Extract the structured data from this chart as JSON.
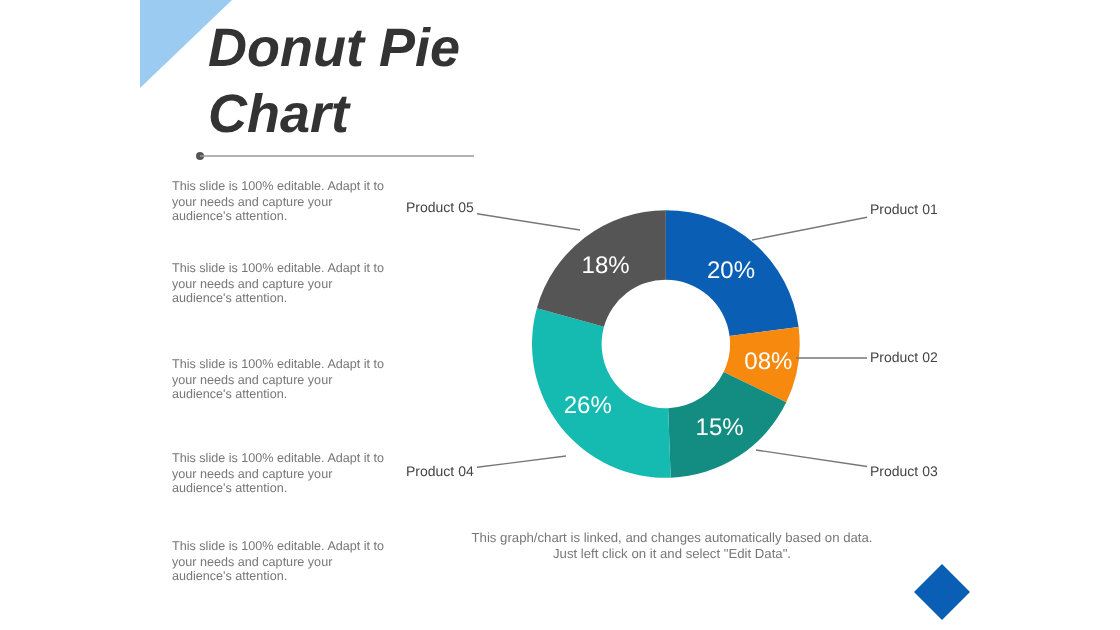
{
  "chart_data": {
    "type": "donut",
    "title": "Donut Pie Chart",
    "categories": [
      "Product 01",
      "Product 02",
      "Product 03",
      "Product 04",
      "Product 05"
    ],
    "values": [
      20,
      8,
      15,
      26,
      18
    ],
    "value_labels": [
      "20%",
      "08%",
      "15%",
      "26%",
      "18%"
    ],
    "colors": [
      "#0a5fb4",
      "#f7890f",
      "#138d82",
      "#15bab0",
      "#555555"
    ],
    "legend": false,
    "annotations": [
      "This slide is 100% editable. Adapt it to your needs and capture your audience's attention.",
      "This slide is 100% editable. Adapt it to your needs and capture your audience's attention.",
      "This slide is 100% editable. Adapt it to your needs and capture your audience's attention.",
      "This slide is 100% editable. Adapt it to your needs and capture your audience's attention.",
      "This slide is 100% editable. Adapt it to your needs and capture your audience's attention.",
      "This graph/chart is linked, and changes automatically based on data. Just left click on it and select \"Edit Data\"."
    ]
  }
}
